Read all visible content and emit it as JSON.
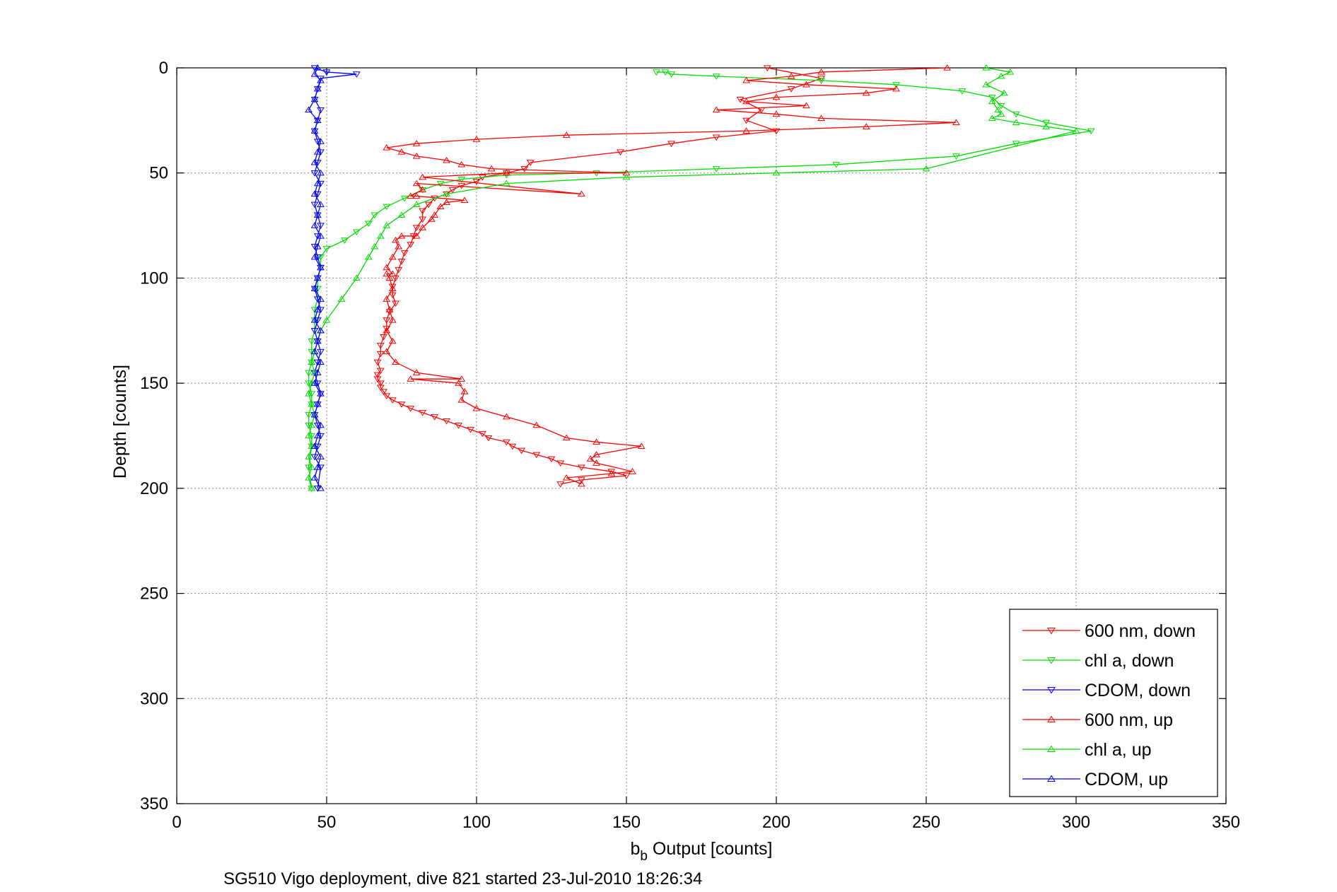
{
  "chart_data": {
    "type": "line",
    "xlabel_main": "b",
    "xlabel_sub": "b",
    "xlabel_rest": " Output [counts]",
    "ylabel": "Depth [counts]",
    "caption": "SG510 Vigo deployment, dive 821 started 23-Jul-2010 18:26:34",
    "xlim": [
      0,
      350
    ],
    "ylim": [
      0,
      350
    ],
    "y_reversed": true,
    "grid": true,
    "legend_position": "bottom-right",
    "xticks": [
      "0",
      "50",
      "100",
      "150",
      "200",
      "250",
      "300",
      "350"
    ],
    "yticks": [
      "0",
      "50",
      "100",
      "150",
      "200",
      "250",
      "300",
      "350"
    ],
    "series": [
      {
        "name": "600 nm, down",
        "color": "#ff0000",
        "marker": "triangle-down",
        "x": [
          197,
          215,
          205,
          188,
          195,
          190,
          200,
          180,
          165,
          148,
          118,
          116,
          110,
          102,
          100,
          95,
          92,
          90,
          86,
          84,
          82,
          82,
          80,
          79,
          78,
          76,
          75,
          74,
          73,
          72,
          72,
          73,
          71,
          70,
          70,
          69,
          68,
          68,
          67,
          68,
          67,
          67,
          68,
          68,
          69,
          70,
          72,
          75,
          78,
          82,
          86,
          90,
          94,
          98,
          102,
          104,
          110,
          112,
          115,
          120,
          125,
          128,
          135,
          145,
          150,
          135,
          128
        ],
        "y": [
          0,
          5,
          10,
          15,
          20,
          25,
          30,
          33,
          36,
          40,
          45,
          48,
          50,
          52,
          54,
          56,
          58,
          60,
          62,
          65,
          68,
          72,
          76,
          80,
          84,
          88,
          92,
          96,
          100,
          104,
          108,
          112,
          116,
          120,
          124,
          128,
          132,
          136,
          140,
          144,
          146,
          148,
          150,
          152,
          154,
          156,
          158,
          160,
          162,
          164,
          166,
          168,
          170,
          172,
          174,
          176,
          178,
          180,
          182,
          184,
          186,
          188,
          190,
          192,
          194,
          196,
          198
        ]
      },
      {
        "name": "chl a, down",
        "color": "#00dd00",
        "marker": "triangle-down",
        "x": [
          160,
          163,
          165,
          180,
          215,
          240,
          262,
          272,
          275,
          280,
          290,
          305,
          280,
          260,
          220,
          180,
          140,
          110,
          95,
          88,
          82,
          76,
          70,
          66,
          64,
          60,
          56,
          50,
          48,
          48,
          47,
          47,
          47,
          46,
          46,
          46,
          45,
          45,
          45,
          44,
          44,
          45,
          45,
          44,
          44,
          45,
          45,
          44,
          45
        ],
        "y": [
          2,
          2,
          3,
          4,
          6,
          8,
          11,
          14,
          18,
          22,
          26,
          30,
          36,
          42,
          46,
          48,
          50,
          51,
          53,
          55,
          58,
          62,
          66,
          70,
          74,
          78,
          82,
          86,
          90,
          95,
          100,
          105,
          110,
          115,
          120,
          125,
          130,
          135,
          140,
          145,
          150,
          155,
          160,
          165,
          170,
          175,
          180,
          190,
          200
        ]
      },
      {
        "name": "CDOM, down",
        "color": "#0000ff",
        "marker": "triangle-down",
        "x": [
          46,
          50,
          60,
          48,
          47,
          46,
          48,
          47,
          46,
          47,
          48,
          47,
          46,
          48,
          47,
          46,
          47,
          48,
          47,
          46,
          47,
          48,
          47,
          46,
          47,
          48,
          47,
          46,
          47,
          48,
          47,
          46,
          47,
          48,
          47,
          46,
          47,
          48,
          47,
          46,
          48,
          47
        ],
        "y": [
          0,
          2,
          3,
          5,
          10,
          15,
          20,
          25,
          30,
          35,
          40,
          45,
          50,
          55,
          60,
          65,
          70,
          75,
          80,
          85,
          90,
          95,
          100,
          105,
          110,
          115,
          120,
          125,
          130,
          135,
          140,
          145,
          150,
          155,
          160,
          165,
          170,
          175,
          180,
          185,
          190,
          200
        ]
      },
      {
        "name": "600 nm, up",
        "color": "#ff0000",
        "marker": "triangle-up",
        "x": [
          135,
          130,
          145,
          152,
          140,
          138,
          140,
          155,
          140,
          130,
          120,
          110,
          100,
          95,
          96,
          94,
          78,
          95,
          80,
          73,
          70,
          72,
          70,
          72,
          71,
          70,
          72,
          71,
          70,
          72,
          70,
          72,
          74,
          73,
          75,
          80,
          82,
          85,
          86,
          88,
          90,
          96,
          80,
          78,
          82,
          80,
          135,
          82,
          110,
          150,
          105,
          95,
          90,
          80,
          75,
          70,
          80,
          100,
          130,
          190,
          230,
          260,
          215,
          200,
          180,
          210,
          190,
          200,
          230,
          240,
          210,
          190,
          205,
          215,
          257
        ],
        "y": [
          198,
          195,
          193,
          192,
          188,
          186,
          184,
          180,
          178,
          176,
          170,
          166,
          162,
          158,
          154,
          150,
          148,
          148,
          145,
          140,
          135,
          130,
          125,
          120,
          115,
          110,
          105,
          100,
          98,
          98,
          95,
          90,
          85,
          82,
          80,
          80,
          76,
          72,
          70,
          66,
          64,
          63,
          61,
          61,
          58,
          55,
          60,
          52,
          50,
          50,
          48,
          46,
          44,
          42,
          40,
          38,
          36,
          34,
          32,
          30,
          28,
          26,
          24,
          22,
          20,
          18,
          16,
          14,
          12,
          10,
          8,
          6,
          4,
          2,
          0
        ]
      },
      {
        "name": "chl a, up",
        "color": "#00dd00",
        "marker": "triangle-up",
        "x": [
          45,
          44,
          45,
          44,
          45,
          44,
          45,
          46,
          45,
          44,
          45,
          46,
          45,
          46,
          47,
          48,
          50,
          55,
          60,
          64,
          66,
          68,
          70,
          75,
          80,
          90,
          110,
          150,
          200,
          250,
          300,
          290,
          280,
          272,
          275,
          274,
          272,
          276,
          270,
          275,
          278,
          270
        ],
        "y": [
          200,
          195,
          190,
          185,
          180,
          175,
          170,
          165,
          160,
          155,
          150,
          145,
          140,
          135,
          130,
          125,
          120,
          110,
          100,
          90,
          85,
          80,
          75,
          70,
          65,
          60,
          55,
          52,
          50,
          48,
          30,
          28,
          26,
          24,
          22,
          20,
          16,
          12,
          8,
          4,
          2,
          0
        ]
      },
      {
        "name": "CDOM, up",
        "color": "#0000ff",
        "marker": "triangle-up",
        "x": [
          48,
          46,
          47,
          48,
          46,
          47,
          48,
          46,
          47,
          48,
          46,
          47,
          48,
          46,
          47,
          48,
          46,
          47,
          48,
          46,
          47,
          48,
          46,
          47,
          48,
          46,
          47,
          48,
          46,
          47,
          48,
          46,
          47,
          48,
          46,
          47,
          44,
          46,
          47,
          48,
          46,
          47
        ],
        "y": [
          200,
          195,
          190,
          185,
          180,
          175,
          170,
          165,
          160,
          155,
          150,
          145,
          140,
          135,
          130,
          125,
          120,
          115,
          110,
          105,
          100,
          95,
          90,
          85,
          80,
          75,
          70,
          65,
          60,
          55,
          50,
          45,
          40,
          35,
          30,
          25,
          20,
          15,
          10,
          6,
          3,
          0
        ]
      }
    ]
  }
}
